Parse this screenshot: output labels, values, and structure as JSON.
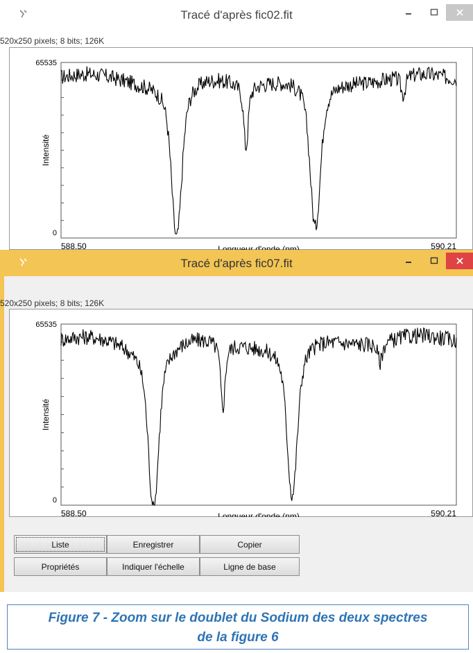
{
  "windows": [
    {
      "title": "Tracé d'après  fic02.fit",
      "info": "520x250 pixels; 8 bits; 126K",
      "chart_data": {
        "type": "line",
        "xlabel": "Longueur d'onde (nm)",
        "ylabel": "Intensité",
        "x_tick_labels": [
          "588.50",
          "590.21"
        ],
        "y_tick_labels": [
          "65535",
          "0"
        ],
        "xlim": [
          588.5,
          590.21
        ],
        "ylim": [
          0,
          65535
        ],
        "dips": [
          {
            "x": 589.0,
            "depth": 1.0
          },
          {
            "x": 589.3,
            "depth": 0.4
          },
          {
            "x": 589.6,
            "depth": 0.95
          },
          {
            "x": 589.98,
            "depth": 0.12
          }
        ],
        "continuum_level": 0.92
      }
    },
    {
      "title": "Tracé d'après  fic07.fit",
      "info": "520x250 pixels; 8 bits; 126K",
      "chart_data": {
        "type": "line",
        "xlabel": "Longueur d'onde (nm)",
        "ylabel": "Intensité",
        "x_tick_labels": [
          "588.50",
          "590.21"
        ],
        "y_tick_labels": [
          "65535",
          "0"
        ],
        "xlim": [
          588.5,
          590.21
        ],
        "ylim": [
          0,
          65535
        ],
        "dips": [
          {
            "x": 588.9,
            "depth": 1.0
          },
          {
            "x": 589.2,
            "depth": 0.4
          },
          {
            "x": 589.5,
            "depth": 0.95
          },
          {
            "x": 589.88,
            "depth": 0.12
          }
        ],
        "continuum_level": 0.92
      }
    }
  ],
  "buttons": {
    "liste": "Liste",
    "enregistrer": "Enregistrer",
    "copier": "Copier",
    "proprietes": "Propriétés",
    "indiquer": "Indiquer l'échelle",
    "ligne": "Ligne de base"
  },
  "caption": {
    "line1": "Figure 7 - Zoom sur le doublet du Sodium des deux spectres",
    "line2": "de la figure 6"
  },
  "colors": {
    "active_titlebar": "#f3c554",
    "inactive_titlebar": "#ffffff",
    "close_active": "#e04343",
    "close_inactive": "#c8c8c8",
    "caption_text": "#2e74b5"
  },
  "icons": [
    "app-icon",
    "minimize-icon",
    "maximize-icon",
    "close-icon"
  ]
}
